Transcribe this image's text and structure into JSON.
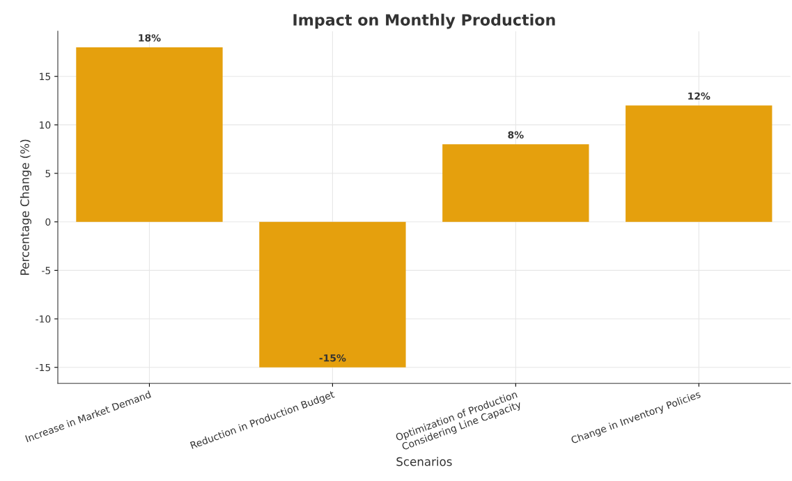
{
  "chart_data": {
    "type": "bar",
    "title": "Impact on Monthly Production",
    "xlabel": "Scenarios",
    "ylabel": "Percentage Change (%)",
    "categories": [
      "Increase in Market Demand",
      "Reduction in Production Budget",
      "Optimization of Production\nConsidering Line Capacity",
      "Change in Inventory Policies"
    ],
    "values": [
      18,
      -15,
      8,
      12
    ],
    "value_labels": [
      "18%",
      "-15%",
      "8%",
      "12%"
    ],
    "color": "#e5a00d",
    "ylim": [
      -16.65,
      19.65
    ],
    "yticks": [
      -15,
      -10,
      -5,
      0,
      5,
      10,
      15
    ],
    "grid": true
  }
}
